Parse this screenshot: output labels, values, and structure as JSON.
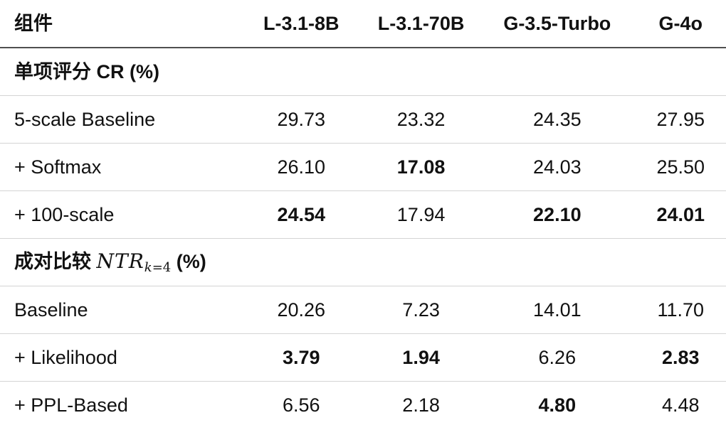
{
  "table": {
    "columns": [
      {
        "label": "组件"
      },
      {
        "label": "L-3.1-8B"
      },
      {
        "label": "L-3.1-70B"
      },
      {
        "label": "G-3.5-Turbo"
      },
      {
        "label": "G-4o"
      }
    ],
    "sections": [
      {
        "header_parts": [
          {
            "text": "单项评分 CR (%)",
            "style": "hdr-bold"
          }
        ],
        "rows": [
          {
            "label": "5-scale Baseline",
            "values": [
              {
                "text": "29.73",
                "bold": false
              },
              {
                "text": "23.32",
                "bold": false
              },
              {
                "text": "24.35",
                "bold": false
              },
              {
                "text": "27.95",
                "bold": false
              }
            ]
          },
          {
            "label": "+ Softmax",
            "values": [
              {
                "text": "26.10",
                "bold": false
              },
              {
                "text": "17.08",
                "bold": true
              },
              {
                "text": "24.03",
                "bold": false
              },
              {
                "text": "25.50",
                "bold": false
              }
            ]
          },
          {
            "label": "+ 100-scale",
            "values": [
              {
                "text": "24.54",
                "bold": true
              },
              {
                "text": "17.94",
                "bold": false
              },
              {
                "text": "22.10",
                "bold": true
              },
              {
                "text": "24.01",
                "bold": true
              }
            ]
          }
        ]
      },
      {
        "header_parts": [
          {
            "text": "成对比较 ",
            "style": "hdr-bold"
          },
          {
            "text": "NTR",
            "style": "math"
          },
          {
            "text": "k",
            "style": "math-sub-italic"
          },
          {
            "text": "=4",
            "style": "math-sub"
          },
          {
            "text": " (%)",
            "style": "hdr-bold"
          }
        ],
        "rows": [
          {
            "label": "Baseline",
            "values": [
              {
                "text": "20.26",
                "bold": false
              },
              {
                "text": "7.23",
                "bold": false
              },
              {
                "text": "14.01",
                "bold": false
              },
              {
                "text": "11.70",
                "bold": false
              }
            ]
          },
          {
            "label": "+ Likelihood",
            "values": [
              {
                "text": "3.79",
                "bold": true
              },
              {
                "text": "1.94",
                "bold": true
              },
              {
                "text": "6.26",
                "bold": false
              },
              {
                "text": "2.83",
                "bold": true
              }
            ]
          },
          {
            "label": "+ PPL-Based",
            "values": [
              {
                "text": "6.56",
                "bold": false
              },
              {
                "text": "2.18",
                "bold": false
              },
              {
                "text": "4.80",
                "bold": true
              },
              {
                "text": "4.48",
                "bold": false
              }
            ]
          }
        ]
      }
    ],
    "colors": {
      "text": "#111111",
      "header_rule": "#4f4f4f",
      "row_rule": "#d4d4d4",
      "background": "#ffffff"
    }
  },
  "chart_data": {
    "type": "table",
    "title": "",
    "columns": [
      "组件",
      "L-3.1-8B",
      "L-3.1-70B",
      "G-3.5-Turbo",
      "G-4o"
    ],
    "groups": [
      {
        "group": "单项评分 CR (%)",
        "rows": [
          [
            "5-scale Baseline",
            29.73,
            23.32,
            24.35,
            27.95
          ],
          [
            "+ Softmax",
            26.1,
            17.08,
            24.03,
            25.5
          ],
          [
            "+ 100-scale",
            24.54,
            17.94,
            22.1,
            24.01
          ]
        ]
      },
      {
        "group": "成对比较 NTR_{k=4} (%)",
        "rows": [
          [
            "Baseline",
            20.26,
            7.23,
            14.01,
            11.7
          ],
          [
            "+ Likelihood",
            3.79,
            1.94,
            6.26,
            2.83
          ],
          [
            "+ PPL-Based",
            6.56,
            2.18,
            4.8,
            4.48
          ]
        ]
      }
    ]
  }
}
